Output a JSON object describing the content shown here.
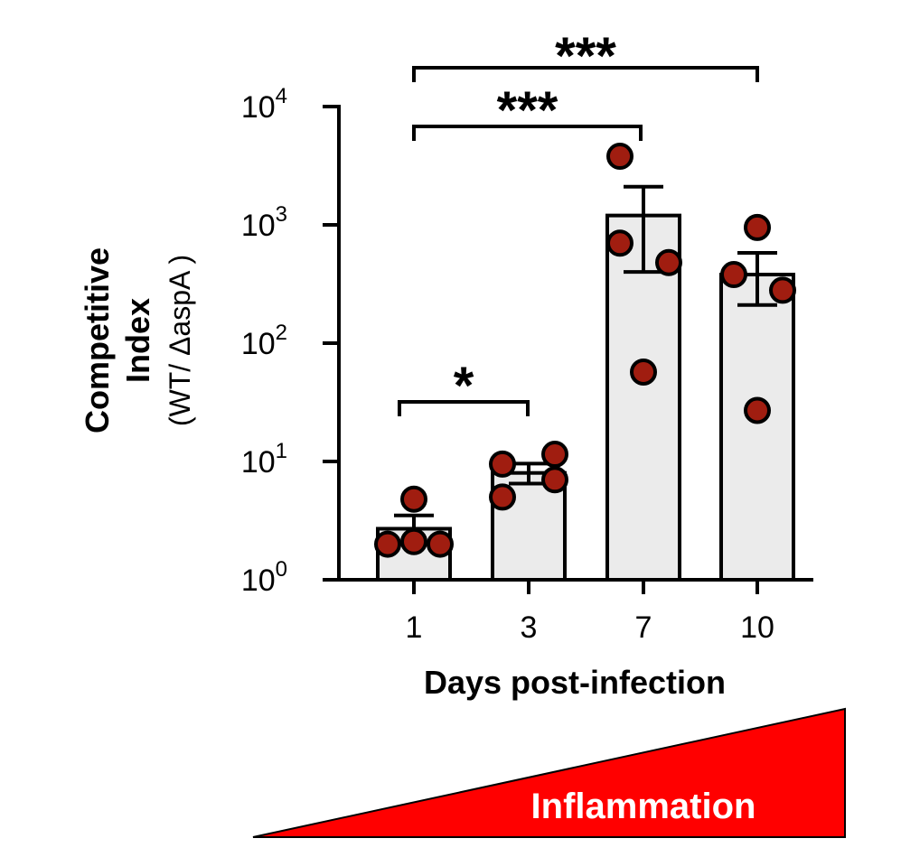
{
  "chart_data": {
    "type": "bar",
    "scale": "log10",
    "categories": [
      "1",
      "3",
      "7",
      "10"
    ],
    "values": [
      2.7,
      8.0,
      1200,
      380
    ],
    "error_upper": [
      3.5,
      9.6,
      2100,
      580
    ],
    "error_lower": [
      2.0,
      6.5,
      400,
      210
    ],
    "points": [
      [
        4.8,
        2.0,
        2.1,
        2.0
      ],
      [
        9.5,
        11.5,
        5.0,
        7.0
      ],
      [
        3800,
        700,
        480,
        57
      ],
      [
        950,
        380,
        280,
        27
      ]
    ],
    "xlabel": "Days post-infection",
    "ylabel_line1": "Competitive",
    "ylabel_line2": "Index",
    "ylabel_line3": "(WT/ ΔaspA )",
    "y_ticks": [
      {
        "base": "10",
        "exp": "0"
      },
      {
        "base": "10",
        "exp": "1"
      },
      {
        "base": "10",
        "exp": "2"
      },
      {
        "base": "10",
        "exp": "3"
      },
      {
        "base": "10",
        "exp": "4"
      }
    ],
    "ylim": [
      1,
      10000
    ],
    "grid": false,
    "significance": [
      {
        "from": "1",
        "to": "3",
        "label": "*"
      },
      {
        "from": "1",
        "to": "7",
        "label": "***"
      },
      {
        "from": "1",
        "to": "10",
        "label": "***"
      }
    ],
    "annotation": "Inflammation",
    "colors": {
      "bar_fill": "#ebebeb",
      "point_fill": "#a01d10",
      "stroke": "#000000",
      "wedge": "#ff0000"
    }
  }
}
